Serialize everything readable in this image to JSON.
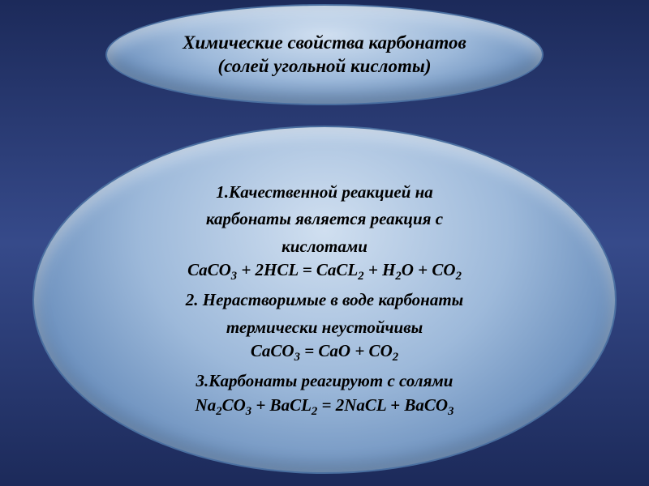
{
  "slide": {
    "background_gradient": [
      "#1c2a5a",
      "#364a8a",
      "#1c2a5a"
    ],
    "top_ellipse": {
      "gradient": [
        "#d0dff0",
        "#9db9da",
        "#6288b8",
        "#4a6fa0"
      ],
      "border_color": "#4a6fa0",
      "title_line1": "Химические свойства карбонатов",
      "title_line2": "(солей угольной кислоты)",
      "font_style": "italic bold",
      "font_size_pt": 17
    },
    "main_ellipse": {
      "gradient": [
        "#d0dff0",
        "#9db9da",
        "#6288b8",
        "#4a6fa0"
      ],
      "border_color": "#4a6fa0",
      "items": [
        {
          "heading_lines": [
            "1.Качественной реакцией на",
            "карбонаты является реакция с",
            "кислотами"
          ],
          "formula_html": "CaCO<sub>3</sub> + 2HCL = CaCL<sub>2</sub> + H<sub>2</sub>O + CO<sub>2</sub>"
        },
        {
          "heading_lines": [
            "2. Нерастворимые в воде карбонаты",
            "термически неустойчивы"
          ],
          "formula_html": "CaCO<sub>3</sub> = CaO + CO<sub>2</sub>"
        },
        {
          "heading_lines": [
            "3.Карбонаты реагируют с солями"
          ],
          "formula_html": "Na<sub>2</sub>CO<sub>3</sub> + BaCL<sub>2</sub> = 2NaCL + BaCO<sub>3</sub>"
        }
      ],
      "font_style": "italic bold",
      "font_size_pt": 16
    }
  }
}
